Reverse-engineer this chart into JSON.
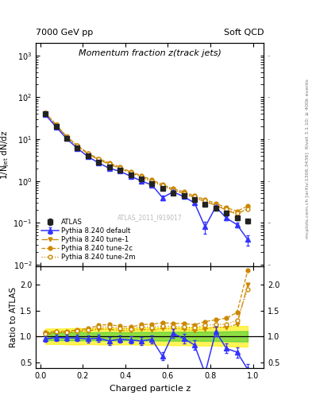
{
  "title_main": "Momentum fraction z(track jets)",
  "header_left": "7000 GeV pp",
  "header_right": "Soft QCD",
  "ylabel_main": "1/N$_\\mathrm{jet}$ dN/dz",
  "ylabel_ratio": "Ratio to ATLAS",
  "xlabel": "Charged particle z",
  "watermark": "ATLAS_2011_I919017",
  "right_label_top": "Rivet 3.1.10; ≥ 400k events",
  "right_label_bottom": "mcplots.cern.ch [arXiv:1306.3436]",
  "ylim_main": [
    0.009,
    2000
  ],
  "ylim_ratio": [
    0.38,
    2.35
  ],
  "xlim": [
    -0.02,
    1.05
  ],
  "atlas_x": [
    0.025,
    0.075,
    0.125,
    0.175,
    0.225,
    0.275,
    0.325,
    0.375,
    0.425,
    0.475,
    0.525,
    0.575,
    0.625,
    0.675,
    0.725,
    0.775,
    0.825,
    0.875,
    0.925,
    0.975
  ],
  "atlas_y": [
    40.0,
    20.0,
    10.5,
    6.2,
    4.0,
    2.8,
    2.2,
    1.8,
    1.4,
    1.1,
    0.85,
    0.65,
    0.52,
    0.44,
    0.36,
    0.28,
    0.22,
    0.17,
    0.13,
    0.11
  ],
  "atlas_yerr": [
    3.0,
    1.5,
    0.8,
    0.5,
    0.3,
    0.22,
    0.18,
    0.14,
    0.11,
    0.09,
    0.07,
    0.055,
    0.045,
    0.038,
    0.032,
    0.025,
    0.02,
    0.016,
    0.013,
    0.011
  ],
  "pythia_default_y": [
    38.0,
    19.5,
    10.2,
    6.0,
    3.8,
    2.7,
    2.0,
    1.7,
    1.3,
    1.0,
    0.8,
    0.4,
    0.55,
    0.42,
    0.3,
    0.08,
    0.24,
    0.13,
    0.09,
    0.04
  ],
  "pythia_default_yerr": [
    2.0,
    1.2,
    0.7,
    0.4,
    0.28,
    0.2,
    0.16,
    0.13,
    0.1,
    0.08,
    0.065,
    0.05,
    0.045,
    0.038,
    0.032,
    0.025,
    0.02,
    0.016,
    0.013,
    0.011
  ],
  "tune1_y": [
    41.0,
    21.5,
    11.2,
    6.8,
    4.4,
    3.2,
    2.5,
    2.0,
    1.55,
    1.25,
    0.95,
    0.75,
    0.6,
    0.5,
    0.4,
    0.32,
    0.26,
    0.2,
    0.16,
    0.22
  ],
  "tune2c_y": [
    43.0,
    22.0,
    11.5,
    7.0,
    4.6,
    3.4,
    2.7,
    2.15,
    1.65,
    1.35,
    1.05,
    0.82,
    0.65,
    0.55,
    0.44,
    0.36,
    0.29,
    0.23,
    0.19,
    0.25
  ],
  "tune2m_y": [
    42.0,
    21.8,
    11.3,
    6.9,
    4.5,
    3.3,
    2.6,
    2.08,
    1.6,
    1.3,
    1.0,
    0.78,
    0.62,
    0.52,
    0.42,
    0.34,
    0.27,
    0.21,
    0.17,
    0.21
  ],
  "color_atlas": "#222222",
  "color_default": "#3333ff",
  "color_tune": "#cc8800",
  "legend_entries": [
    "ATLAS",
    "Pythia 8.240 default",
    "Pythia 8.240 tune-1",
    "Pythia 8.240 tune-2c",
    "Pythia 8.240 tune-2m"
  ]
}
